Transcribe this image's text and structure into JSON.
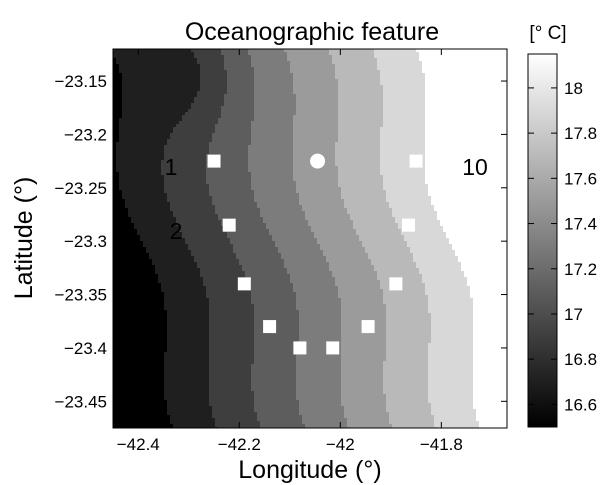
{
  "chart_data": {
    "type": "heatmap",
    "subtype": "filled-contour map with sampling stations",
    "title": "Oceanographic feature",
    "xlabel": "Longitude (°)",
    "ylabel": "Latitude (°)",
    "xlim": [
      -42.45,
      -41.67
    ],
    "ylim": [
      -23.475,
      -23.12
    ],
    "x_ticks": [
      -42.4,
      -42.2,
      -42,
      -41.8
    ],
    "x_tick_labels": [
      "−42.4",
      "−42.2",
      "−42",
      "−41.8"
    ],
    "y_ticks": [
      -23.15,
      -23.2,
      -23.25,
      -23.3,
      -23.35,
      -23.4,
      -23.45
    ],
    "y_tick_labels": [
      "−23.15",
      "−23.2",
      "−23.25",
      "−23.3",
      "−23.35",
      "−23.4",
      "−23.45"
    ],
    "grid": false,
    "colorbar": {
      "label": "[° C]",
      "range": [
        16.5,
        18.15
      ],
      "ticks": [
        16.6,
        16.8,
        17,
        17.2,
        17.4,
        17.6,
        17.8,
        18
      ],
      "tick_labels": [
        "16.6",
        "16.8",
        "17",
        "17.2",
        "17.4",
        "17.6",
        "17.8",
        "18"
      ],
      "colormap": "gray"
    },
    "contour_levels_degC": [
      16.6,
      16.8,
      17.0,
      17.2,
      17.4,
      17.6,
      17.8,
      18.0
    ],
    "stations": [
      {
        "label": "1",
        "lon": -42.25,
        "lat": -23.225,
        "marker": "square"
      },
      {
        "lon": -42.22,
        "lat": -23.285,
        "marker": "square"
      },
      {
        "label": "2",
        "lon": -42.19,
        "lat": -23.34,
        "marker": "square"
      },
      {
        "lon": -42.14,
        "lat": -23.38,
        "marker": "square"
      },
      {
        "lon": -42.08,
        "lat": -23.4,
        "marker": "square"
      },
      {
        "lon": -42.015,
        "lat": -23.4,
        "marker": "square"
      },
      {
        "lon": -41.945,
        "lat": -23.38,
        "marker": "square"
      },
      {
        "lon": -41.89,
        "lat": -23.34,
        "marker": "square"
      },
      {
        "lon": -41.865,
        "lat": -23.285,
        "marker": "square"
      },
      {
        "label": "10",
        "lon": -41.85,
        "lat": -23.225,
        "marker": "square"
      },
      {
        "lon": -42.045,
        "lat": -23.225,
        "marker": "circle"
      }
    ],
    "annotations": [
      "1",
      "2",
      "10"
    ]
  }
}
